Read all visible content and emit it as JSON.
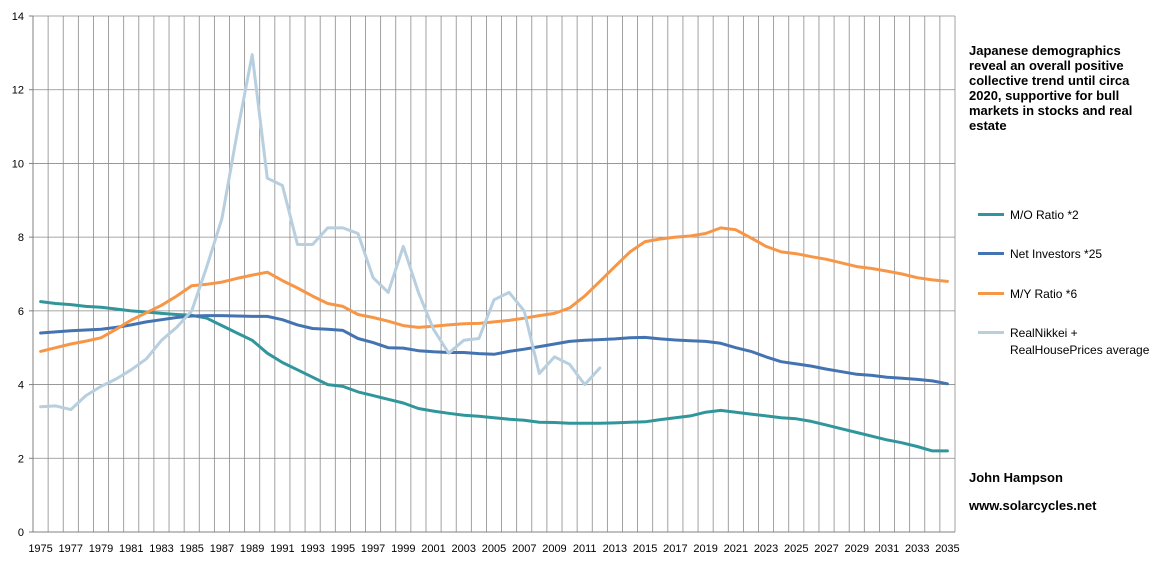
{
  "chart_data": {
    "type": "line",
    "title": "",
    "xlabel": "",
    "ylabel": "",
    "x": [
      1975,
      1976,
      1977,
      1978,
      1979,
      1980,
      1981,
      1982,
      1983,
      1984,
      1985,
      1986,
      1987,
      1988,
      1989,
      1990,
      1991,
      1992,
      1993,
      1994,
      1995,
      1996,
      1997,
      1998,
      1999,
      2000,
      2001,
      2002,
      2003,
      2004,
      2005,
      2006,
      2007,
      2008,
      2009,
      2010,
      2011,
      2012,
      2013,
      2014,
      2015,
      2016,
      2017,
      2018,
      2019,
      2020,
      2021,
      2022,
      2023,
      2024,
      2025,
      2026,
      2027,
      2028,
      2029,
      2030,
      2031,
      2032,
      2033,
      2034,
      2035
    ],
    "xlim": [
      1975,
      2035
    ],
    "ylim": [
      0,
      14
    ],
    "y_ticks": [
      0,
      2,
      4,
      6,
      8,
      10,
      12,
      14
    ],
    "x_tick_labels": [
      "1975",
      "1977",
      "1979",
      "1981",
      "1983",
      "1985",
      "1987",
      "1989",
      "1991",
      "1993",
      "1995",
      "1997",
      "1999",
      "2001",
      "2003",
      "2005",
      "2007",
      "2009",
      "2011",
      "2013",
      "2015",
      "2017",
      "2019",
      "2021",
      "2023",
      "2025",
      "2027",
      "2029",
      "2031",
      "2033",
      "2035"
    ],
    "grid": true,
    "legend_position": "right",
    "series": [
      {
        "name": "M/O Ratio  *2",
        "color": "#31969b",
        "values": [
          6.25,
          6.2,
          6.17,
          6.12,
          6.1,
          6.05,
          6.0,
          5.97,
          5.93,
          5.9,
          5.88,
          5.8,
          5.6,
          5.4,
          5.2,
          4.85,
          4.6,
          4.4,
          4.2,
          4.0,
          3.95,
          3.8,
          3.7,
          3.6,
          3.5,
          3.35,
          3.28,
          3.22,
          3.17,
          3.14,
          3.1,
          3.06,
          3.03,
          2.98,
          2.97,
          2.95,
          2.95,
          2.95,
          2.96,
          2.98,
          2.99,
          3.05,
          3.1,
          3.15,
          3.25,
          3.3,
          3.25,
          3.2,
          3.15,
          3.1,
          3.07,
          3.0,
          2.9,
          2.8,
          2.7,
          2.6,
          2.5,
          2.42,
          2.32,
          2.2,
          2.2
        ]
      },
      {
        "name": "Net Investors *25",
        "color": "#4473b2",
        "values": [
          5.4,
          5.43,
          5.46,
          5.48,
          5.5,
          5.55,
          5.62,
          5.7,
          5.76,
          5.82,
          5.86,
          5.87,
          5.87,
          5.86,
          5.85,
          5.85,
          5.76,
          5.62,
          5.52,
          5.5,
          5.47,
          5.25,
          5.14,
          5.0,
          4.99,
          4.92,
          4.89,
          4.87,
          4.87,
          4.84,
          4.82,
          4.9,
          4.96,
          5.03,
          5.1,
          5.17,
          5.2,
          5.22,
          5.24,
          5.27,
          5.28,
          5.24,
          5.21,
          5.19,
          5.17,
          5.12,
          5.0,
          4.9,
          4.75,
          4.62,
          4.56,
          4.5,
          4.42,
          4.35,
          4.28,
          4.25,
          4.2,
          4.17,
          4.14,
          4.1,
          4.02
        ]
      },
      {
        "name": "M/Y Ratio *6",
        "color": "#f79646",
        "values": [
          4.9,
          5.0,
          5.1,
          5.18,
          5.27,
          5.5,
          5.75,
          5.95,
          6.15,
          6.4,
          6.68,
          6.72,
          6.78,
          6.88,
          6.97,
          7.05,
          6.82,
          6.62,
          6.4,
          6.2,
          6.12,
          5.9,
          5.82,
          5.72,
          5.6,
          5.55,
          5.58,
          5.62,
          5.65,
          5.66,
          5.7,
          5.74,
          5.8,
          5.87,
          5.93,
          6.08,
          6.4,
          6.8,
          7.2,
          7.6,
          7.88,
          7.95,
          8.0,
          8.03,
          8.1,
          8.25,
          8.2,
          7.98,
          7.75,
          7.6,
          7.55,
          7.47,
          7.4,
          7.3,
          7.2,
          7.15,
          7.08,
          7.0,
          6.9,
          6.84,
          6.8
        ]
      },
      {
        "name": "RealNikkei + RealHousePrices average",
        "color": "#b7cfdf",
        "values": [
          3.4,
          3.42,
          3.32,
          3.7,
          3.95,
          4.15,
          4.4,
          4.7,
          5.2,
          5.55,
          6.0,
          7.2,
          8.5,
          10.8,
          12.95,
          9.6,
          9.4,
          7.8,
          7.8,
          8.25,
          8.25,
          8.1,
          6.9,
          6.5,
          7.75,
          6.5,
          5.5,
          4.85,
          5.2,
          5.25,
          6.3,
          6.5,
          6.0,
          4.3,
          4.75,
          4.55,
          4.0,
          4.45,
          null,
          null,
          null,
          null,
          null,
          null,
          null,
          null,
          null,
          null,
          null,
          null,
          null,
          null,
          null,
          null,
          null,
          null,
          null,
          null,
          null,
          null,
          null
        ]
      }
    ]
  },
  "annotation": {
    "headline": "Japanese demographics reveal an overall positive collective trend until circa 2020, supportive for bull markets in stocks and real estate",
    "author": "John Hampson",
    "website": "www.solarcycles.net"
  }
}
